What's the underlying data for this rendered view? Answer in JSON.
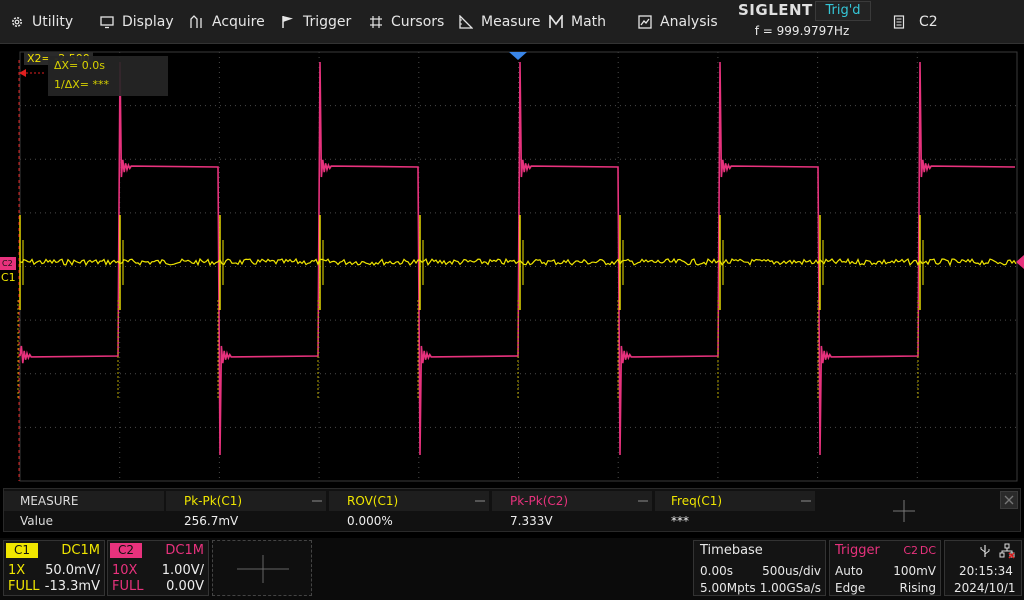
{
  "menu": {
    "items": [
      {
        "label": "Utility",
        "icon": "gear-icon"
      },
      {
        "label": "Display",
        "icon": "monitor-icon"
      },
      {
        "label": "Acquire",
        "icon": "acquire-icon"
      },
      {
        "label": "Trigger",
        "icon": "flag-icon"
      },
      {
        "label": "Cursors",
        "icon": "crosshair-icon"
      },
      {
        "label": "Measure",
        "icon": "ruler-icon"
      },
      {
        "label": "Math",
        "icon": "math-m-icon"
      },
      {
        "label": "Analysis",
        "icon": "analysis-icon"
      }
    ]
  },
  "brand": {
    "name": "SIGLENT",
    "trig_status": "Trig'd",
    "frequency": "f = 999.9797Hz"
  },
  "channel_select": {
    "label": "C2",
    "icon": "document-icon"
  },
  "cursor": {
    "x2_label": "X2= -2.500",
    "delta_x": "ΔX= 0.0s",
    "inv_delta_x": "1/ΔX= ***"
  },
  "channel_markers": {
    "c1": "C1",
    "c2": "C2"
  },
  "colors": {
    "c1": "#f0e600",
    "c2": "#e8327d",
    "trigger": "#3a86e8",
    "trig_status": "#35c7d8",
    "cursor": "#e02020"
  },
  "measure": {
    "header_label": "MEASURE",
    "value_label": "Value",
    "columns": [
      {
        "name": "Pk-Pk(C1)",
        "value": "256.7mV",
        "color": "#f0e600"
      },
      {
        "name": "ROV(C1)",
        "value": "0.000%",
        "color": "#f0e600"
      },
      {
        "name": "Pk-Pk(C2)",
        "value": "7.333V",
        "color": "#e8327d"
      },
      {
        "name": "Freq(C1)",
        "value": "***",
        "color": "#f0e600"
      }
    ]
  },
  "c1": {
    "tag": "C1",
    "coupling": "DC1M",
    "probe": "1X",
    "scale": "50.0mV/",
    "bw": "FULL",
    "offset": "-13.3mV"
  },
  "c2": {
    "tag": "C2",
    "coupling": "DC1M",
    "probe": "10X",
    "scale": "1.00V/",
    "bw": "FULL",
    "offset": "0.00V"
  },
  "timebase": {
    "title": "Timebase",
    "delay": "0.00s",
    "scale": "500us/div",
    "memory": "5.00Mpts",
    "sample_rate": "1.00GSa/s"
  },
  "trigger": {
    "title": "Trigger",
    "source": "C2",
    "coupling": "DC",
    "mode": "Auto",
    "level": "100mV",
    "type": "Edge",
    "slope": "Rising"
  },
  "clock": {
    "time": "20:15:34",
    "date": "2024/10/1",
    "usb_icon": "usb-icon",
    "network_icon": "network-icon"
  }
}
